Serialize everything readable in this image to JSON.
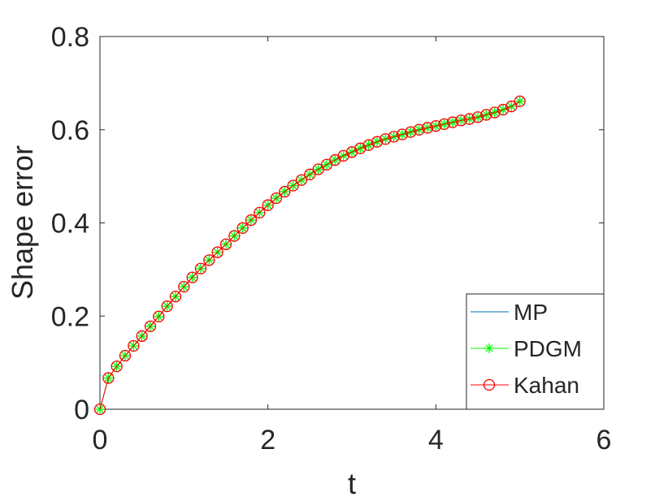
{
  "chart_data": {
    "type": "line",
    "title": "",
    "xlabel": "t",
    "ylabel": "Shape error",
    "xlim": [
      0,
      6
    ],
    "ylim": [
      0,
      0.8
    ],
    "xticks": [
      0,
      2,
      4,
      6
    ],
    "xtick_labels": [
      "0",
      "2",
      "4",
      "6"
    ],
    "yticks": [
      0,
      0.2,
      0.4,
      0.6,
      0.8
    ],
    "ytick_labels": [
      "0",
      "0.2",
      "0.4",
      "0.6",
      "0.8"
    ],
    "grid": false,
    "legend_position": "bottom-right",
    "x": [
      0,
      0.1,
      0.2,
      0.3,
      0.4,
      0.5,
      0.6,
      0.7,
      0.8,
      0.9,
      1.0,
      1.1,
      1.2,
      1.3,
      1.4,
      1.5,
      1.6,
      1.7,
      1.8,
      1.9,
      2.0,
      2.1,
      2.2,
      2.3,
      2.4,
      2.5,
      2.6,
      2.7,
      2.8,
      2.9,
      3.0,
      3.1,
      3.2,
      3.3,
      3.4,
      3.5,
      3.6,
      3.7,
      3.8,
      3.9,
      4.0,
      4.1,
      4.2,
      4.3,
      4.4,
      4.5,
      4.6,
      4.7,
      4.8,
      4.9,
      5.0
    ],
    "series": [
      {
        "name": "MP",
        "color": "#0072bd",
        "marker": "none",
        "values": [
          0,
          0.067,
          0.092,
          0.115,
          0.136,
          0.157,
          0.178,
          0.199,
          0.221,
          0.242,
          0.263,
          0.283,
          0.302,
          0.32,
          0.337,
          0.354,
          0.372,
          0.389,
          0.406,
          0.422,
          0.438,
          0.453,
          0.467,
          0.48,
          0.492,
          0.504,
          0.515,
          0.525,
          0.535,
          0.544,
          0.552,
          0.56,
          0.567,
          0.574,
          0.58,
          0.585,
          0.59,
          0.595,
          0.6,
          0.604,
          0.608,
          0.612,
          0.616,
          0.62,
          0.623,
          0.627,
          0.632,
          0.637,
          0.643,
          0.65,
          0.661
        ]
      },
      {
        "name": "PDGM",
        "color": "#00ff00",
        "marker": "asterisk",
        "values": [
          0,
          0.067,
          0.092,
          0.115,
          0.136,
          0.157,
          0.178,
          0.199,
          0.221,
          0.242,
          0.263,
          0.283,
          0.302,
          0.32,
          0.337,
          0.354,
          0.372,
          0.389,
          0.406,
          0.422,
          0.438,
          0.453,
          0.467,
          0.48,
          0.492,
          0.504,
          0.515,
          0.525,
          0.535,
          0.544,
          0.552,
          0.56,
          0.567,
          0.574,
          0.58,
          0.585,
          0.59,
          0.595,
          0.6,
          0.604,
          0.608,
          0.612,
          0.616,
          0.62,
          0.623,
          0.627,
          0.632,
          0.637,
          0.643,
          0.65,
          0.661
        ]
      },
      {
        "name": "Kahan",
        "color": "#ff0000",
        "marker": "circle",
        "values": [
          0,
          0.067,
          0.092,
          0.115,
          0.136,
          0.157,
          0.178,
          0.199,
          0.221,
          0.242,
          0.263,
          0.283,
          0.302,
          0.32,
          0.337,
          0.354,
          0.372,
          0.389,
          0.406,
          0.422,
          0.438,
          0.453,
          0.467,
          0.48,
          0.492,
          0.504,
          0.515,
          0.525,
          0.535,
          0.544,
          0.552,
          0.56,
          0.567,
          0.574,
          0.58,
          0.585,
          0.59,
          0.595,
          0.6,
          0.604,
          0.608,
          0.612,
          0.616,
          0.62,
          0.623,
          0.627,
          0.632,
          0.637,
          0.643,
          0.65,
          0.661
        ]
      }
    ]
  }
}
